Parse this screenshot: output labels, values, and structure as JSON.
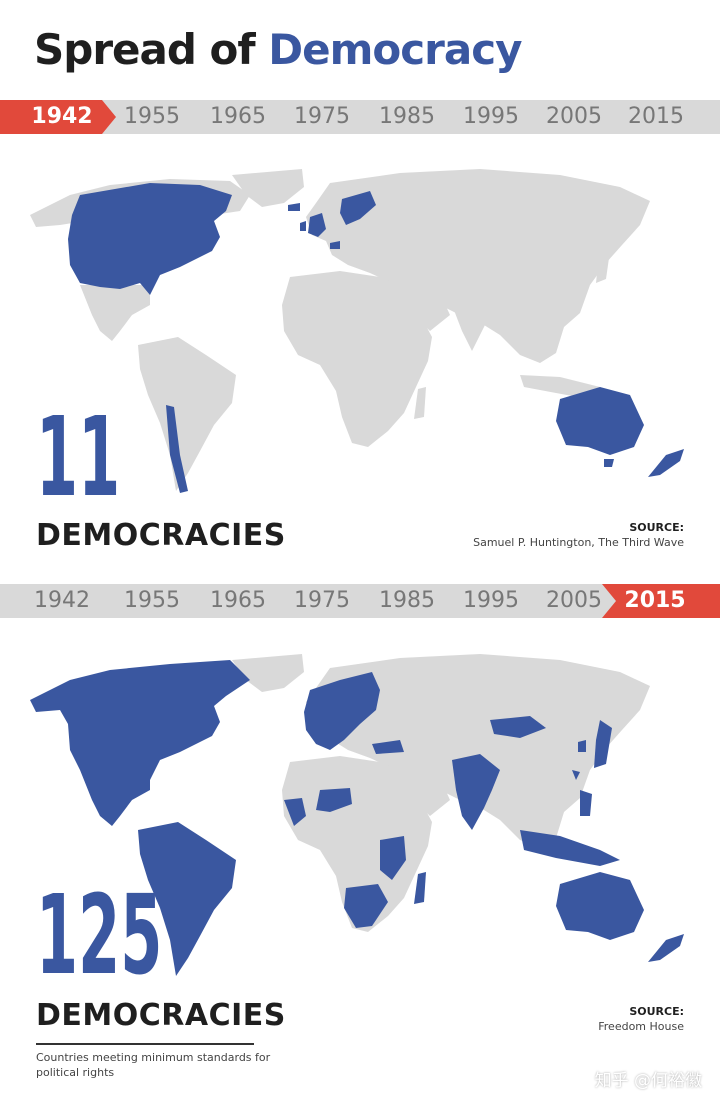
{
  "title": {
    "prefix": "Spread of ",
    "highlight": "Democracy"
  },
  "timeline_years": [
    "1942",
    "1955",
    "1965",
    "1975",
    "1985",
    "1995",
    "2005",
    "2015"
  ],
  "colors": {
    "democracy": "#3a57a0",
    "land": "#d9d9d9",
    "active_year": "#e1493b"
  },
  "panel_1942": {
    "active_year": "1942",
    "count": "11",
    "count_label": "DEMOCRACIES",
    "source_label": "SOURCE:",
    "source_text": "Samuel P. Huntington, The Third Wave"
  },
  "panel_2015": {
    "active_year": "2015",
    "count": "125",
    "count_label": "DEMOCRACIES",
    "source_label": "SOURCE:",
    "source_text": "Freedom House",
    "note": "Countries meeting minimum standards for political rights"
  },
  "watermark": "知乎 @何裕徽"
}
